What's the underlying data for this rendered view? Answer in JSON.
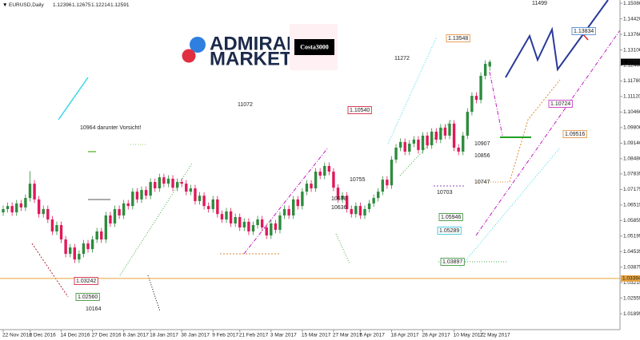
{
  "chart_data": {
    "type": "candlestick",
    "title": "EURUSD,Daily",
    "up_color": "#2e8b3e",
    "down_color": "#e0195a",
    "categories": [
      "22 Nov 2016",
      null,
      null,
      null,
      null,
      null,
      "2 Dec 2016",
      null,
      null,
      null,
      null,
      null,
      null,
      "14 Dec 2016",
      null,
      null,
      null,
      null,
      null,
      null,
      "27 Dec 2016",
      null,
      null,
      null,
      null,
      null,
      null,
      "6 Jan 2017",
      null,
      null,
      null,
      null,
      null,
      "18 Jan 2017",
      null,
      null,
      null,
      null,
      null,
      null,
      "30 Jan 2017",
      null,
      null,
      null,
      null,
      null,
      null,
      "9 Feb 2017",
      null,
      null,
      null,
      null,
      null,
      "21 Feb 2017",
      null,
      null,
      null,
      null,
      null,
      null,
      "3 Mar 2017",
      null,
      null,
      null,
      null,
      null,
      null,
      "15 Mar 2017",
      null,
      null,
      null,
      null,
      null,
      null,
      "27 Mar 2017",
      null,
      null,
      null,
      null,
      null,
      "6 Apr 2017",
      null,
      null,
      null,
      null,
      null,
      null,
      "18 Apr 2017",
      null,
      null,
      null,
      null,
      null,
      null,
      "28 Apr 2017",
      null,
      null,
      null,
      null,
      null,
      null,
      "10 May 2017",
      null,
      null,
      null,
      null,
      null,
      "22 May 2017",
      null,
      null
    ],
    "open": [
      1.062,
      1.0634,
      1.0647,
      1.062,
      1.0658,
      1.0641,
      1.0681,
      1.0742,
      1.0675,
      1.0613,
      1.0634,
      1.059,
      1.0539,
      1.0566,
      1.0505,
      1.0444,
      1.0471,
      1.042,
      1.0444,
      1.0488,
      1.0464,
      1.0505,
      1.0539,
      1.0505,
      1.0607,
      1.0573,
      1.0634,
      1.0607,
      1.0658,
      1.0647,
      1.0708,
      1.0675,
      1.0715,
      1.0691,
      1.0749,
      1.0722,
      1.0769,
      1.0742,
      1.0763,
      1.0725,
      1.0749,
      1.0742,
      1.0708,
      1.0722,
      1.0668,
      1.0691,
      1.0647,
      1.0634,
      1.0675,
      1.0613,
      1.059,
      1.0624,
      1.0573,
      1.06,
      1.0556,
      1.058,
      1.0539,
      1.0566,
      1.059,
      1.0556,
      1.0522,
      1.0573,
      1.0546,
      1.0607,
      1.0634,
      1.0607,
      1.0675,
      1.0647,
      1.0708,
      1.0742,
      1.0722,
      1.0793,
      1.0776,
      1.0817,
      1.0793,
      1.0725,
      1.0675,
      1.0691,
      1.0634,
      1.0613,
      1.0647,
      1.0607,
      1.0634,
      1.0658,
      1.0681,
      1.0708,
      1.0759,
      1.0735,
      1.0844,
      1.0895,
      1.0919,
      1.0878,
      1.0912,
      1.0929,
      1.0885,
      1.0946,
      1.0905,
      1.0963,
      1.0929,
      1.098,
      1.0946,
      1.0997,
      1.0895,
      1.0878,
      1.0946,
      1.1047,
      1.1115,
      1.1098,
      1.12,
      1.12396
    ],
    "high": [
      1.0649,
      1.0662,
      1.0662,
      1.0673,
      1.0673,
      1.0696,
      1.0795,
      1.0757,
      1.069,
      1.0649,
      1.0649,
      1.0605,
      1.0581,
      1.0581,
      1.052,
      1.0486,
      1.0486,
      1.0459,
      1.0503,
      1.0503,
      1.052,
      1.0554,
      1.0554,
      1.0622,
      1.0622,
      1.0649,
      1.0649,
      1.0673,
      1.0673,
      1.0723,
      1.0723,
      1.073,
      1.073,
      1.0764,
      1.0764,
      1.0784,
      1.0784,
      1.0778,
      1.0778,
      1.0764,
      1.0764,
      1.0757,
      1.0737,
      1.0737,
      1.0706,
      1.0706,
      1.0662,
      1.069,
      1.069,
      1.0628,
      1.0639,
      1.0639,
      1.0615,
      1.0615,
      1.0595,
      1.0595,
      1.0581,
      1.0605,
      1.0605,
      1.0571,
      1.0588,
      1.0588,
      1.0622,
      1.0649,
      1.0649,
      1.069,
      1.069,
      1.0723,
      1.0757,
      1.0757,
      1.0808,
      1.0808,
      1.0832,
      1.0832,
      1.0808,
      1.074,
      1.0706,
      1.0706,
      1.0649,
      1.0662,
      1.0662,
      1.0649,
      1.0673,
      1.0696,
      1.0723,
      1.0774,
      1.0774,
      1.0859,
      1.091,
      1.0934,
      1.0934,
      1.0927,
      1.0944,
      1.0944,
      1.0961,
      1.0961,
      1.0978,
      1.0978,
      1.0995,
      1.0995,
      1.1012,
      1.1012,
      1.091,
      1.0961,
      1.1062,
      1.113,
      1.113,
      1.1215,
      1.1266,
      1.12675
    ],
    "low": [
      1.0605,
      1.0619,
      1.0605,
      1.0605,
      1.0626,
      1.0626,
      1.0666,
      1.066,
      1.0598,
      1.0598,
      1.0575,
      1.0524,
      1.0524,
      1.049,
      1.0429,
      1.0429,
      1.0405,
      1.0405,
      1.0429,
      1.0449,
      1.0449,
      1.049,
      1.049,
      1.049,
      1.0558,
      1.0558,
      1.0592,
      1.0592,
      1.0632,
      1.0632,
      1.066,
      1.066,
      1.0676,
      1.0676,
      1.0707,
      1.0707,
      1.0727,
      1.0727,
      1.071,
      1.071,
      1.0727,
      1.0693,
      1.0693,
      1.0653,
      1.0653,
      1.0632,
      1.0619,
      1.0619,
      1.0598,
      1.0575,
      1.0575,
      1.0558,
      1.0558,
      1.0541,
      1.0541,
      1.0524,
      1.0524,
      1.0551,
      1.0541,
      1.0507,
      1.0507,
      1.0531,
      1.0531,
      1.0592,
      1.0592,
      1.0592,
      1.0632,
      1.0632,
      1.0693,
      1.0707,
      1.0707,
      1.0761,
      1.0761,
      1.0778,
      1.071,
      1.066,
      1.066,
      1.0619,
      1.0598,
      1.0598,
      1.0592,
      1.0592,
      1.0619,
      1.0643,
      1.0666,
      1.0693,
      1.072,
      1.072,
      1.0829,
      1.088,
      1.0863,
      1.0863,
      1.0897,
      1.087,
      1.087,
      1.089,
      1.089,
      1.0914,
      1.0914,
      1.0931,
      1.0931,
      1.088,
      1.0863,
      1.0863,
      1.0931,
      1.1032,
      1.1083,
      1.1083,
      1.1185,
      1.12214
    ],
    "close": [
      1.0634,
      1.0647,
      1.062,
      1.0658,
      1.0641,
      1.0681,
      1.0742,
      1.0675,
      1.0613,
      1.0634,
      1.059,
      1.0539,
      1.0566,
      1.0505,
      1.0444,
      1.0471,
      1.042,
      1.0444,
      1.0488,
      1.0464,
      1.0505,
      1.0539,
      1.0505,
      1.0607,
      1.0573,
      1.0634,
      1.0607,
      1.0658,
      1.0647,
      1.0708,
      1.0675,
      1.0715,
      1.0691,
      1.0749,
      1.0722,
      1.0769,
      1.0742,
      1.0763,
      1.0725,
      1.0749,
      1.0742,
      1.0708,
      1.0722,
      1.0668,
      1.0691,
      1.0647,
      1.0634,
      1.0675,
      1.0613,
      1.059,
      1.0624,
      1.0573,
      1.06,
      1.0556,
      1.058,
      1.0539,
      1.0566,
      1.059,
      1.0556,
      1.0522,
      1.0573,
      1.0546,
      1.0607,
      1.0634,
      1.0607,
      1.0675,
      1.0647,
      1.0708,
      1.0742,
      1.0722,
      1.0793,
      1.0776,
      1.0817,
      1.0793,
      1.0725,
      1.0675,
      1.0691,
      1.0634,
      1.0613,
      1.0647,
      1.0607,
      1.0634,
      1.0658,
      1.0681,
      1.0708,
      1.0759,
      1.0735,
      1.0844,
      1.0895,
      1.0919,
      1.0878,
      1.0912,
      1.0929,
      1.0885,
      1.0946,
      1.0905,
      1.0963,
      1.0929,
      1.098,
      1.0946,
      1.0997,
      1.0895,
      1.0878,
      1.0946,
      1.1047,
      1.1115,
      1.1098,
      1.12,
      1.1251,
      1.12591
    ],
    "ylim": [
      1.0122,
      1.1522
    ],
    "yticks": [
      {
        "value": 1.1508,
        "label": "1.15080"
      },
      {
        "value": 1.1442,
        "label": "1.14420"
      },
      {
        "value": 1.1376,
        "label": "1.13760"
      },
      {
        "value": 1.131,
        "label": "1.13100"
      },
      {
        "value": 1.1244,
        "label": "1.12440"
      },
      {
        "value": 1.1178,
        "label": "1.11780"
      },
      {
        "value": 1.1112,
        "label": "1.11120"
      },
      {
        "value": 1.1046,
        "label": "1.10460"
      },
      {
        "value": 1.098,
        "label": "1.09800"
      },
      {
        "value": 1.0914,
        "label": "1.09140"
      },
      {
        "value": 1.0848,
        "label": "1.08480"
      },
      1.07835,
      1.07175,
      1.06515,
      1.05855,
      1.05195,
      1.04535,
      1.03875,
      1.03215,
      1.02555,
      1.01895
    ],
    "current_price": 1.12591,
    "levels": [
      {
        "value": 1.03394,
        "color": "#e8a33d"
      }
    ],
    "annotations": [
      {
        "text": "10964 darunter Vorsicht!",
        "color": "#3a5fcd",
        "boxed": false
      },
      {
        "text": "11072",
        "color": "#2a8a2a",
        "boxed": false
      },
      {
        "text": "1.10540",
        "color": "#d01030",
        "boxed": true
      },
      {
        "text": "11272",
        "color": "#e58be0",
        "boxed": false
      },
      {
        "text": "1.13548",
        "color": "#e08a30",
        "boxed": true
      },
      {
        "text": "11499",
        "color": "#3a5fcd",
        "boxed": false
      },
      {
        "text": "1.13834",
        "color": "#3a7fcd",
        "boxed": true
      },
      {
        "text": "1.10724",
        "color": "#c020c0",
        "boxed": true
      },
      {
        "text": "1.09516",
        "color": "#e08a30",
        "boxed": true
      },
      {
        "text": "10907",
        "color": "#2a8a2a",
        "boxed": false
      },
      {
        "text": "10856",
        "color": "#333333",
        "boxed": false
      },
      {
        "text": "10747",
        "color": "#333333",
        "boxed": false
      },
      {
        "text": "10703",
        "color": "#3a5fcd",
        "boxed": false
      },
      {
        "text": "10755",
        "color": "#3a5fcd",
        "boxed": false
      },
      {
        "text": "10678",
        "color": "#d01030",
        "boxed": false
      },
      {
        "text": "10636",
        "color": "#333333",
        "boxed": false
      },
      {
        "text": "1.05946",
        "color": "#2a8a2a",
        "boxed": true
      },
      {
        "text": "1.05289",
        "color": "#20c0d8",
        "boxed": true
      },
      {
        "text": "1.03897",
        "color": "#2a8a2a",
        "boxed": true
      },
      {
        "text": "1.03242",
        "color": "#d01030",
        "boxed": true
      },
      {
        "text": "1.02560",
        "color": "#2a8a2a",
        "boxed": true
      },
      {
        "text": "10164",
        "color": "#2a8a2a",
        "boxed": false
      }
    ]
  },
  "logo": {
    "line1": "ADMIRAL",
    "line2": "MARKETS"
  },
  "watermark": "Costa3000"
}
